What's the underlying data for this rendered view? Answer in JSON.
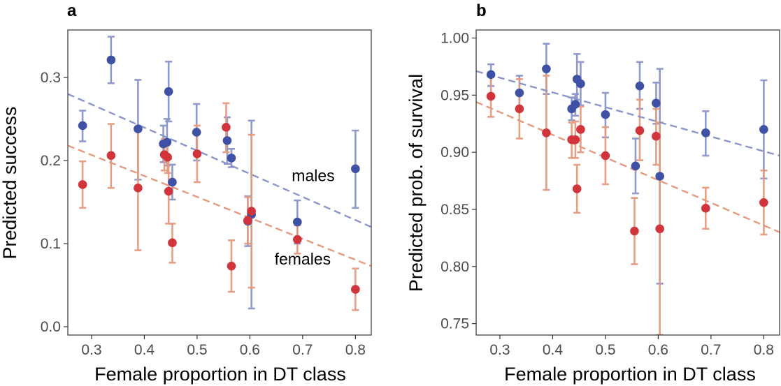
{
  "chart_data": [
    {
      "type": "scatter",
      "panel_label": "a",
      "xlabel": "Female proportion in DT class",
      "ylabel": "Predicted success",
      "xlim": [
        0.255,
        0.83
      ],
      "ylim": [
        -0.01,
        0.357
      ],
      "xticks": [
        0.3,
        0.4,
        0.5,
        0.6,
        0.7,
        0.8
      ],
      "yticks": [
        0.0,
        0.1,
        0.2,
        0.3
      ],
      "xtick_labels": [
        "0.3",
        "0.4",
        "0.5",
        "0.6",
        "0.7",
        "0.8"
      ],
      "ytick_labels": [
        "0.0",
        "0.1",
        "0.2",
        "0.3"
      ],
      "annotations": [
        {
          "text": "males",
          "x": 0.72,
          "y": 0.175
        },
        {
          "text": "females",
          "x": 0.7,
          "y": 0.075
        }
      ],
      "series": [
        {
          "name": "males",
          "color": "#3f51a5",
          "err_color": "#8a95c9",
          "trend": {
            "x": [
              0.255,
              0.83
            ],
            "y": [
              0.28,
              0.12
            ]
          },
          "points": [
            {
              "x": 0.283,
              "y": 0.242,
              "lo": 0.223,
              "hi": 0.26
            },
            {
              "x": 0.337,
              "y": 0.321,
              "lo": 0.293,
              "hi": 0.349
            },
            {
              "x": 0.388,
              "y": 0.238,
              "lo": 0.177,
              "hi": 0.297
            },
            {
              "x": 0.436,
              "y": 0.22,
              "lo": 0.198,
              "hi": 0.242
            },
            {
              "x": 0.443,
              "y": 0.222,
              "lo": 0.194,
              "hi": 0.25
            },
            {
              "x": 0.446,
              "y": 0.283,
              "lo": 0.247,
              "hi": 0.319
            },
            {
              "x": 0.453,
              "y": 0.174,
              "lo": 0.153,
              "hi": 0.195
            },
            {
              "x": 0.499,
              "y": 0.234,
              "lo": 0.2,
              "hi": 0.268
            },
            {
              "x": 0.557,
              "y": 0.224,
              "lo": 0.196,
              "hi": 0.252
            },
            {
              "x": 0.565,
              "y": 0.203,
              "lo": 0.192,
              "hi": 0.214
            },
            {
              "x": 0.596,
              "y": 0.127,
              "lo": 0.097,
              "hi": 0.157
            },
            {
              "x": 0.603,
              "y": 0.135,
              "lo": 0.022,
              "hi": 0.248
            },
            {
              "x": 0.69,
              "y": 0.126,
              "lo": 0.1,
              "hi": 0.152
            },
            {
              "x": 0.8,
              "y": 0.19,
              "lo": 0.143,
              "hi": 0.236
            }
          ]
        },
        {
          "name": "females",
          "color": "#d1343a",
          "err_color": "#e59a7e",
          "trend": {
            "x": [
              0.255,
              0.83
            ],
            "y": [
              0.218,
              0.073
            ]
          },
          "points": [
            {
              "x": 0.283,
              "y": 0.171,
              "lo": 0.143,
              "hi": 0.199
            },
            {
              "x": 0.337,
              "y": 0.206,
              "lo": 0.167,
              "hi": 0.244
            },
            {
              "x": 0.388,
              "y": 0.167,
              "lo": 0.092,
              "hi": 0.24
            },
            {
              "x": 0.438,
              "y": 0.207,
              "lo": 0.188,
              "hi": 0.226
            },
            {
              "x": 0.444,
              "y": 0.204,
              "lo": 0.185,
              "hi": 0.222
            },
            {
              "x": 0.446,
              "y": 0.163,
              "lo": 0.124,
              "hi": 0.202
            },
            {
              "x": 0.453,
              "y": 0.101,
              "lo": 0.077,
              "hi": 0.124
            },
            {
              "x": 0.5,
              "y": 0.208,
              "lo": 0.174,
              "hi": 0.242
            },
            {
              "x": 0.555,
              "y": 0.24,
              "lo": 0.21,
              "hi": 0.269
            },
            {
              "x": 0.565,
              "y": 0.073,
              "lo": 0.042,
              "hi": 0.104
            },
            {
              "x": 0.596,
              "y": 0.128,
              "lo": 0.1,
              "hi": 0.156
            },
            {
              "x": 0.603,
              "y": 0.139,
              "lo": 0.047,
              "hi": 0.231
            },
            {
              "x": 0.69,
              "y": 0.105,
              "lo": 0.088,
              "hi": 0.122
            },
            {
              "x": 0.8,
              "y": 0.045,
              "lo": 0.02,
              "hi": 0.07
            }
          ]
        }
      ]
    },
    {
      "type": "scatter",
      "panel_label": "b",
      "xlabel": "Female proportion in DT class",
      "ylabel": "Predicted prob. of survival",
      "xlim": [
        0.255,
        0.83
      ],
      "ylim": [
        0.74,
        1.007
      ],
      "xticks": [
        0.3,
        0.4,
        0.5,
        0.6,
        0.7,
        0.8
      ],
      "yticks": [
        0.75,
        0.8,
        0.85,
        0.9,
        0.95,
        1.0
      ],
      "xtick_labels": [
        "0.3",
        "0.4",
        "0.5",
        "0.6",
        "0.7",
        "0.8"
      ],
      "ytick_labels": [
        "0.75",
        "0.80",
        "0.85",
        "0.90",
        "0.95",
        "1.00"
      ],
      "annotations": [],
      "series": [
        {
          "name": "males",
          "color": "#3f51a5",
          "err_color": "#8a95c9",
          "trend": {
            "x": [
              0.255,
              0.83
            ],
            "y": [
              0.971,
              0.897
            ]
          },
          "points": [
            {
              "x": 0.283,
              "y": 0.968,
              "lo": 0.958,
              "hi": 0.977
            },
            {
              "x": 0.337,
              "y": 0.952,
              "lo": 0.937,
              "hi": 0.967
            },
            {
              "x": 0.388,
              "y": 0.973,
              "lo": 0.951,
              "hi": 0.995
            },
            {
              "x": 0.436,
              "y": 0.938,
              "lo": 0.928,
              "hi": 0.948
            },
            {
              "x": 0.443,
              "y": 0.942,
              "lo": 0.932,
              "hi": 0.951
            },
            {
              "x": 0.446,
              "y": 0.964,
              "lo": 0.942,
              "hi": 0.986
            },
            {
              "x": 0.453,
              "y": 0.96,
              "lo": 0.941,
              "hi": 0.979
            },
            {
              "x": 0.5,
              "y": 0.933,
              "lo": 0.913,
              "hi": 0.952
            },
            {
              "x": 0.557,
              "y": 0.888,
              "lo": 0.864,
              "hi": 0.912
            },
            {
              "x": 0.565,
              "y": 0.958,
              "lo": 0.938,
              "hi": 0.979
            },
            {
              "x": 0.596,
              "y": 0.943,
              "lo": 0.925,
              "hi": 0.961
            },
            {
              "x": 0.603,
              "y": 0.879,
              "lo": 0.785,
              "hi": 0.973
            },
            {
              "x": 0.69,
              "y": 0.917,
              "lo": 0.897,
              "hi": 0.936
            },
            {
              "x": 0.8,
              "y": 0.92,
              "lo": 0.877,
              "hi": 0.963
            }
          ]
        },
        {
          "name": "females",
          "color": "#d1343a",
          "err_color": "#e59a7e",
          "trend": {
            "x": [
              0.255,
              0.83
            ],
            "y": [
              0.944,
              0.83
            ]
          },
          "points": [
            {
              "x": 0.283,
              "y": 0.949,
              "lo": 0.931,
              "hi": 0.967
            },
            {
              "x": 0.337,
              "y": 0.938,
              "lo": 0.912,
              "hi": 0.964
            },
            {
              "x": 0.388,
              "y": 0.917,
              "lo": 0.867,
              "hi": 0.967
            },
            {
              "x": 0.436,
              "y": 0.911,
              "lo": 0.895,
              "hi": 0.926
            },
            {
              "x": 0.443,
              "y": 0.911,
              "lo": 0.895,
              "hi": 0.927
            },
            {
              "x": 0.446,
              "y": 0.868,
              "lo": 0.847,
              "hi": 0.889
            },
            {
              "x": 0.453,
              "y": 0.92,
              "lo": 0.9,
              "hi": 0.94
            },
            {
              "x": 0.5,
              "y": 0.897,
              "lo": 0.872,
              "hi": 0.922
            },
            {
              "x": 0.555,
              "y": 0.831,
              "lo": 0.802,
              "hi": 0.86
            },
            {
              "x": 0.565,
              "y": 0.919,
              "lo": 0.893,
              "hi": 0.946
            },
            {
              "x": 0.596,
              "y": 0.914,
              "lo": 0.889,
              "hi": 0.938
            },
            {
              "x": 0.603,
              "y": 0.833,
              "lo": 0.74,
              "hi": 0.926
            },
            {
              "x": 0.69,
              "y": 0.851,
              "lo": 0.833,
              "hi": 0.869
            },
            {
              "x": 0.8,
              "y": 0.856,
              "lo": 0.828,
              "hi": 0.884
            }
          ]
        }
      ]
    }
  ]
}
